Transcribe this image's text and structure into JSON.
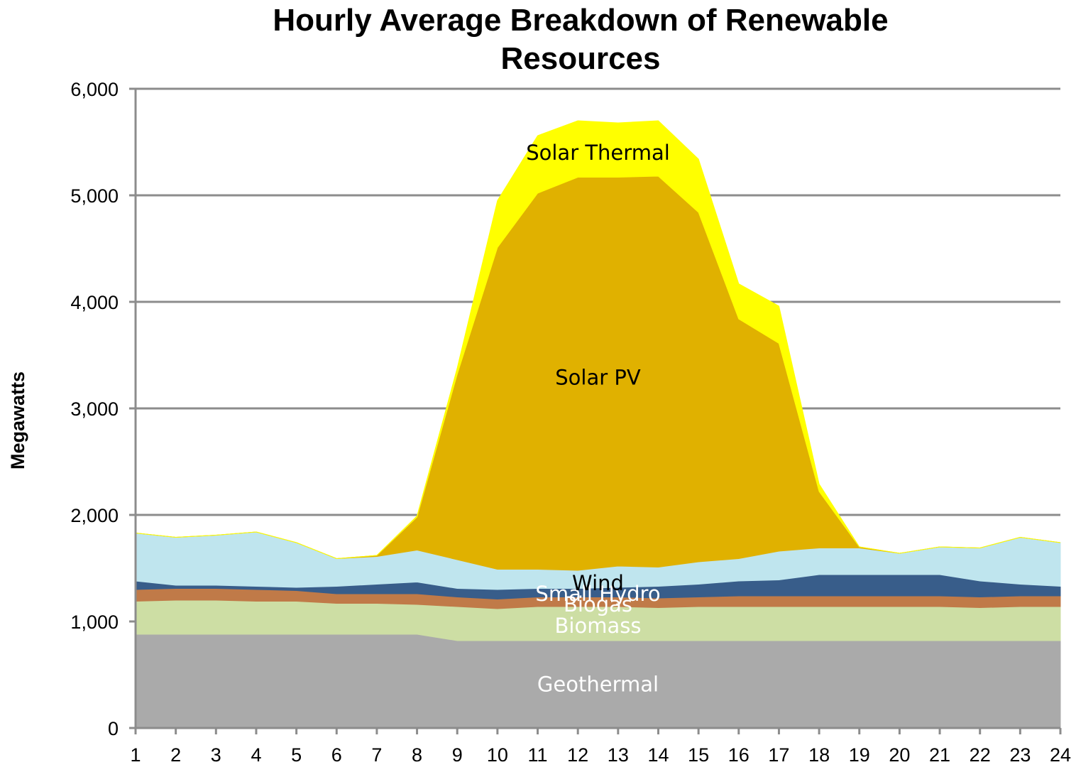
{
  "chart_data": {
    "type": "area",
    "stacked": true,
    "title_lines": [
      "Hourly Average Breakdown of Renewable",
      "Resources"
    ],
    "xlabel": "",
    "ylabel": "Megawatts",
    "ylim": [
      0,
      6000
    ],
    "y_ticks": [
      0,
      1000,
      2000,
      3000,
      4000,
      5000,
      6000
    ],
    "y_tick_labels": [
      "0",
      "1,000",
      "2,000",
      "3,000",
      "4,000",
      "5,000",
      "6,000"
    ],
    "x": [
      1,
      2,
      3,
      4,
      5,
      6,
      7,
      8,
      9,
      10,
      11,
      12,
      13,
      14,
      15,
      16,
      17,
      18,
      19,
      20,
      21,
      22,
      23,
      24
    ],
    "x_tick_labels": [
      "1",
      "2",
      "3",
      "4",
      "5",
      "6",
      "7",
      "8",
      "9",
      "10",
      "11",
      "12",
      "13",
      "14",
      "15",
      "16",
      "17",
      "18",
      "19",
      "20",
      "21",
      "22",
      "23",
      "24"
    ],
    "grid": "horizontal",
    "legend": "none",
    "series": [
      {
        "name": "Geothermal",
        "color": "#aaaaaa",
        "label_color": "#ffffff",
        "values": [
          880,
          880,
          880,
          880,
          880,
          880,
          880,
          880,
          820,
          820,
          820,
          820,
          820,
          820,
          820,
          820,
          820,
          820,
          820,
          820,
          820,
          820,
          820,
          820
        ]
      },
      {
        "name": "Biomass",
        "color": "#cddea4",
        "label_color": "#ffffff",
        "values": [
          310,
          320,
          320,
          310,
          310,
          290,
          290,
          280,
          320,
          300,
          320,
          320,
          320,
          310,
          320,
          320,
          320,
          320,
          320,
          320,
          320,
          310,
          320,
          320
        ]
      },
      {
        "name": "Biogas",
        "color": "#c07a48",
        "label_color": "#ffffff",
        "values": [
          110,
          110,
          110,
          110,
          100,
          90,
          90,
          100,
          90,
          90,
          90,
          90,
          90,
          90,
          90,
          100,
          100,
          100,
          100,
          100,
          100,
          100,
          100,
          100
        ]
      },
      {
        "name": "Small Hydro",
        "color": "#385d8a",
        "label_color": "#ffffff",
        "values": [
          80,
          30,
          30,
          30,
          30,
          70,
          90,
          110,
          80,
          90,
          80,
          80,
          90,
          110,
          120,
          140,
          150,
          200,
          200,
          200,
          200,
          150,
          110,
          90
        ]
      },
      {
        "name": "Wind",
        "color": "#bfe5ee",
        "label_color": "#000000",
        "values": [
          450,
          450,
          470,
          510,
          420,
          260,
          260,
          300,
          270,
          190,
          180,
          170,
          200,
          180,
          210,
          210,
          270,
          250,
          250,
          200,
          260,
          310,
          440,
          410
        ]
      },
      {
        "name": "Solar PV",
        "color": "#e0b100",
        "label_color": "#000000",
        "values": [
          0,
          0,
          0,
          0,
          0,
          0,
          10,
          310,
          1740,
          3020,
          3530,
          3690,
          3650,
          3670,
          3280,
          2250,
          1950,
          530,
          10,
          0,
          0,
          0,
          0,
          0
        ]
      },
      {
        "name": "Solar Thermal",
        "color": "#ffff00",
        "label_color": "#000000",
        "values": [
          0,
          0,
          0,
          0,
          0,
          0,
          0,
          10,
          60,
          440,
          540,
          530,
          510,
          520,
          500,
          330,
          350,
          70,
          0,
          0,
          0,
          0,
          0,
          0
        ]
      }
    ],
    "area_labels": [
      {
        "series": "Geothermal",
        "text": "Geothermal",
        "x": 12.5,
        "y": 410
      },
      {
        "series": "Biomass",
        "text": "Biomass",
        "x": 12.5,
        "y": 960
      },
      {
        "series": "Biogas",
        "text": "Biogas",
        "x": 12.5,
        "y": 1160
      },
      {
        "series": "Small Hydro",
        "text": "Small Hydro",
        "x": 12.5,
        "y": 1260
      },
      {
        "series": "Wind",
        "text": "Wind",
        "x": 12.5,
        "y": 1360
      },
      {
        "series": "Solar PV",
        "text": "Solar PV",
        "x": 12.5,
        "y": 3290
      },
      {
        "series": "Solar Thermal",
        "text": "Solar Thermal",
        "x": 12.5,
        "y": 5400
      }
    ]
  }
}
